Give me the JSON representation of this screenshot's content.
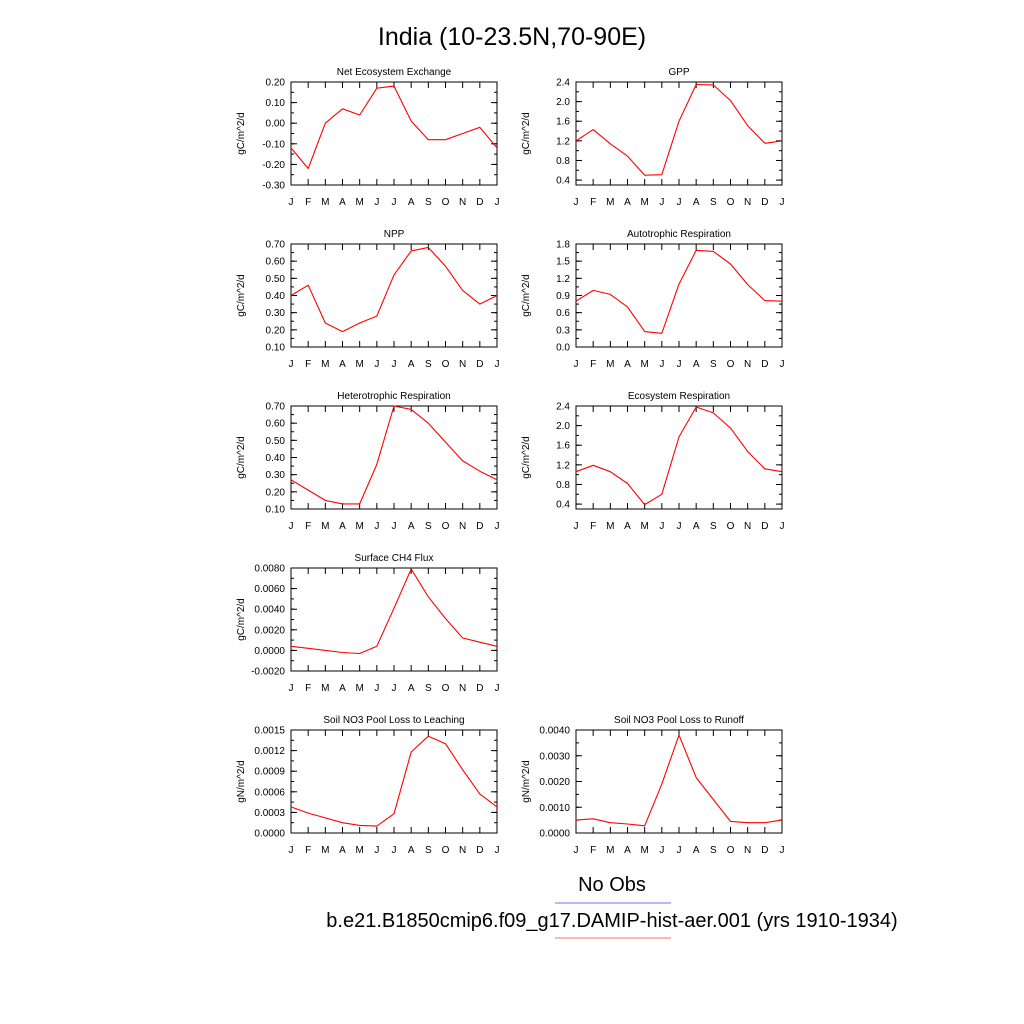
{
  "title": "India (10-23.5N,70-90E)",
  "legend": [
    {
      "label": "No Obs",
      "color": "#6d6dff"
    },
    {
      "label": "b.e21.B1850cmip6.f09_g17.DAMIP-hist-aer.001 (yrs 1910-1934)",
      "color": "#ff6d6d"
    }
  ],
  "chart_data": [
    {
      "type": "line",
      "title": "Net Ecosystem Exchange",
      "ylabel": "gC/m^2/d",
      "categories": [
        "J",
        "F",
        "M",
        "A",
        "M",
        "J",
        "J",
        "A",
        "S",
        "O",
        "N",
        "D",
        "J"
      ],
      "ylim": [
        -0.3,
        0.2
      ],
      "yticks": [
        "-0.30",
        "-0.20",
        "-0.10",
        "0.00",
        "0.10",
        "0.20"
      ],
      "color": "#ff0000",
      "values": [
        -0.12,
        -0.22,
        0.0,
        0.07,
        0.04,
        0.17,
        0.18,
        0.01,
        -0.08,
        -0.08,
        -0.05,
        -0.02,
        -0.12
      ]
    },
    {
      "type": "line",
      "title": "GPP",
      "ylabel": "gC/m^2/d",
      "categories": [
        "J",
        "F",
        "M",
        "A",
        "M",
        "J",
        "J",
        "A",
        "S",
        "O",
        "N",
        "D",
        "J"
      ],
      "ylim": [
        0.3,
        2.4
      ],
      "yticks": [
        "0.4",
        "0.8",
        "1.2",
        "1.6",
        "2.0",
        "2.4"
      ],
      "color": "#ff0000",
      "values": [
        1.2,
        1.43,
        1.14,
        0.89,
        0.5,
        0.51,
        1.6,
        2.35,
        2.34,
        2.02,
        1.51,
        1.15,
        1.2
      ]
    },
    {
      "type": "line",
      "title": "NPP",
      "ylabel": "gC/m^2/d",
      "categories": [
        "J",
        "F",
        "M",
        "A",
        "M",
        "J",
        "J",
        "A",
        "S",
        "O",
        "N",
        "D",
        "J"
      ],
      "ylim": [
        0.1,
        0.7
      ],
      "yticks": [
        "0.10",
        "0.20",
        "0.30",
        "0.40",
        "0.50",
        "0.60",
        "0.70"
      ],
      "color": "#ff0000",
      "values": [
        0.4,
        0.46,
        0.24,
        0.19,
        0.24,
        0.28,
        0.52,
        0.66,
        0.68,
        0.57,
        0.43,
        0.35,
        0.4
      ]
    },
    {
      "type": "line",
      "title": "Autotrophic Respiration",
      "ylabel": "gC/m^2/d",
      "categories": [
        "J",
        "F",
        "M",
        "A",
        "M",
        "J",
        "J",
        "A",
        "S",
        "O",
        "N",
        "D",
        "J"
      ],
      "ylim": [
        0.0,
        1.8
      ],
      "yticks": [
        "0.0",
        "0.3",
        "0.6",
        "0.9",
        "1.2",
        "1.5",
        "1.8"
      ],
      "color": "#ff0000",
      "values": [
        0.8,
        0.99,
        0.92,
        0.7,
        0.27,
        0.24,
        1.1,
        1.69,
        1.67,
        1.45,
        1.09,
        0.81,
        0.8
      ]
    },
    {
      "type": "line",
      "title": "Heterotrophic Respiration",
      "ylabel": "gC/m^2/d",
      "categories": [
        "J",
        "F",
        "M",
        "A",
        "M",
        "J",
        "J",
        "A",
        "S",
        "O",
        "N",
        "D",
        "J"
      ],
      "ylim": [
        0.1,
        0.7
      ],
      "yticks": [
        "0.10",
        "0.20",
        "0.30",
        "0.40",
        "0.50",
        "0.60",
        "0.70"
      ],
      "color": "#ff0000",
      "values": [
        0.27,
        0.21,
        0.15,
        0.13,
        0.13,
        0.36,
        0.7,
        0.68,
        0.6,
        0.49,
        0.38,
        0.32,
        0.27
      ]
    },
    {
      "type": "line",
      "title": "Ecosystem Respiration",
      "ylabel": "gC/m^2/d",
      "categories": [
        "J",
        "F",
        "M",
        "A",
        "M",
        "J",
        "J",
        "A",
        "S",
        "O",
        "N",
        "D",
        "J"
      ],
      "ylim": [
        0.3,
        2.4
      ],
      "yticks": [
        "0.4",
        "0.8",
        "1.2",
        "1.6",
        "2.0",
        "2.4"
      ],
      "color": "#ff0000",
      "values": [
        1.06,
        1.19,
        1.06,
        0.82,
        0.39,
        0.6,
        1.77,
        2.38,
        2.26,
        1.95,
        1.47,
        1.12,
        1.06
      ]
    },
    {
      "type": "line",
      "title": "Surface CH4 Flux",
      "ylabel": "gC/m^2/d",
      "categories": [
        "J",
        "F",
        "M",
        "A",
        "M",
        "J",
        "J",
        "A",
        "S",
        "O",
        "N",
        "D",
        "J"
      ],
      "ylim": [
        -0.002,
        0.008
      ],
      "yticks": [
        "-0.0020",
        "0.0000",
        "0.0020",
        "0.0040",
        "0.0060",
        "0.0080"
      ],
      "color": "#ff0000",
      "values": [
        0.0004,
        0.0002,
        0.0,
        -0.0002,
        -0.0003,
        0.0004,
        0.0041,
        0.0079,
        0.0052,
        0.0031,
        0.0012,
        0.0008,
        0.0004
      ]
    },
    {
      "type": "line",
      "title": "Soil NO3 Pool Loss to Leaching",
      "ylabel": "gN/m^2/d",
      "categories": [
        "J",
        "F",
        "M",
        "A",
        "M",
        "J",
        "J",
        "A",
        "S",
        "O",
        "N",
        "D",
        "J"
      ],
      "ylim": [
        0.0,
        0.0015
      ],
      "yticks": [
        "0.0000",
        "0.0003",
        "0.0006",
        "0.0009",
        "0.0012",
        "0.0015"
      ],
      "color": "#ff0000",
      "values": [
        0.00038,
        0.00029,
        0.00022,
        0.00015,
        0.00011,
        0.0001,
        0.00028,
        0.00118,
        0.00141,
        0.0013,
        0.00092,
        0.00057,
        0.00038
      ]
    },
    {
      "type": "line",
      "title": "Soil NO3 Pool Loss to Runoff",
      "ylabel": "gN/m^2/d",
      "categories": [
        "J",
        "F",
        "M",
        "A",
        "M",
        "J",
        "J",
        "A",
        "S",
        "O",
        "N",
        "D",
        "J"
      ],
      "ylim": [
        0.0,
        0.004
      ],
      "yticks": [
        "0.0000",
        "0.0010",
        "0.0020",
        "0.0030",
        "0.0040"
      ],
      "color": "#ff0000",
      "values": [
        0.0005,
        0.00055,
        0.0004,
        0.00035,
        0.00028,
        0.0019,
        0.0038,
        0.00215,
        0.0013,
        0.00045,
        0.0004,
        0.0004,
        0.0005
      ]
    }
  ]
}
